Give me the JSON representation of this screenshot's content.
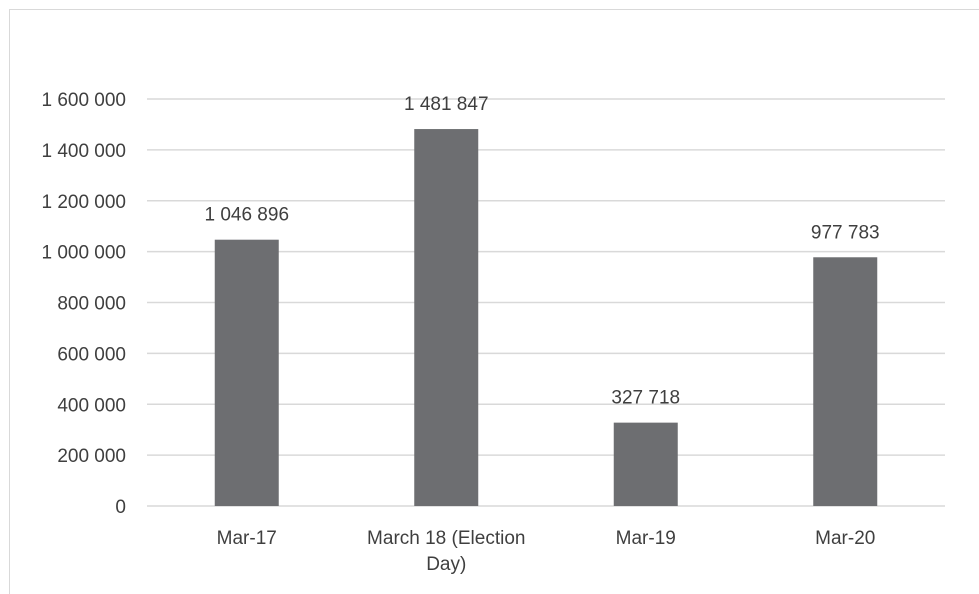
{
  "chart_data": {
    "type": "bar",
    "categories": [
      "Mar-17",
      "March 18 (Election Day)",
      "Mar-19",
      "Mar-20"
    ],
    "values": [
      1046896,
      1481847,
      327718,
      977783
    ],
    "data_labels": [
      "1 046 896",
      "1 481 847",
      "327 718",
      "977 783"
    ],
    "y_ticks": [
      0,
      200000,
      400000,
      600000,
      800000,
      1000000,
      1200000,
      1400000,
      1600000
    ],
    "y_tick_labels": [
      "0",
      "200 000",
      "400 000",
      "600 000",
      "800 000",
      "1 000 000",
      "1 200 000",
      "1 400 000",
      "1 600 000"
    ],
    "ylim": [
      0,
      1600000
    ],
    "grid": true,
    "legend": "none",
    "bar_color": "#6d6e71",
    "grid_color": "#d9d9d9"
  }
}
